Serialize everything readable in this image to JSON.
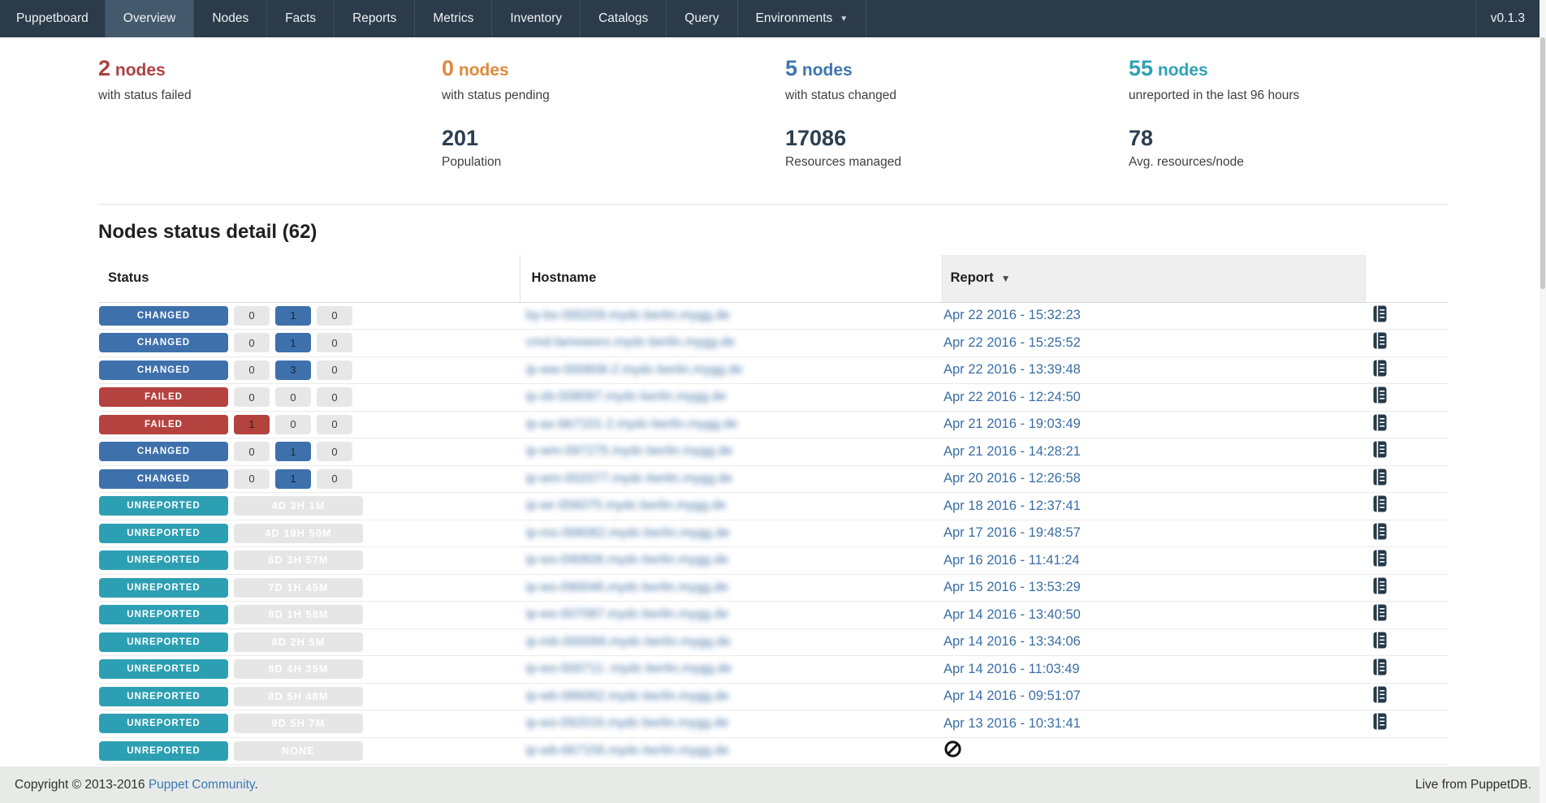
{
  "navbar": {
    "brand": "Puppetboard",
    "items": [
      {
        "label": "Overview",
        "active": true,
        "dropdown": false
      },
      {
        "label": "Nodes",
        "active": false,
        "dropdown": false
      },
      {
        "label": "Facts",
        "active": false,
        "dropdown": false
      },
      {
        "label": "Reports",
        "active": false,
        "dropdown": false
      },
      {
        "label": "Metrics",
        "active": false,
        "dropdown": false
      },
      {
        "label": "Inventory",
        "active": false,
        "dropdown": false
      },
      {
        "label": "Catalogs",
        "active": false,
        "dropdown": false
      },
      {
        "label": "Query",
        "active": false,
        "dropdown": false
      },
      {
        "label": "Environments",
        "active": false,
        "dropdown": true
      }
    ],
    "version": "v0.1.3"
  },
  "stats": {
    "statuses": [
      {
        "count": "2",
        "unit": "nodes",
        "label": "with status failed",
        "color": "#ac4142"
      },
      {
        "count": "0",
        "unit": "nodes",
        "label": "with status pending",
        "color": "#de8a3c"
      },
      {
        "count": "5",
        "unit": "nodes",
        "label": "with status changed",
        "color": "#3e76b0"
      },
      {
        "count": "55",
        "unit": "nodes",
        "label": "unreported in the last 96 hours",
        "color": "#2ea2b5"
      }
    ],
    "metrics": [
      {
        "value": "",
        "label": ""
      },
      {
        "value": "201",
        "label": "Population"
      },
      {
        "value": "17086",
        "label": "Resources managed"
      },
      {
        "value": "78",
        "label": "Avg. resources/node"
      }
    ]
  },
  "section": {
    "title": "Nodes status detail (62)"
  },
  "table": {
    "headers": {
      "status": "Status",
      "hostname": "Hostname",
      "report": "Report"
    },
    "rows": [
      {
        "badge": "CHANGED",
        "badge_type": "changed",
        "chips": [
          {
            "t": "0",
            "type": "default"
          },
          {
            "t": "1",
            "type": "changed"
          },
          {
            "t": "0",
            "type": "default"
          }
        ],
        "hostname_blurred": "by-bx-000209.mydc-berlin.mygg.de",
        "report": "Apr 22 2016 - 15:32:23",
        "icon": true
      },
      {
        "badge": "CHANGED",
        "badge_type": "changed",
        "chips": [
          {
            "t": "0",
            "type": "default"
          },
          {
            "t": "1",
            "type": "changed"
          },
          {
            "t": "0",
            "type": "default"
          }
        ],
        "hostname_blurred": "cmd-lameworx.mydc-berlin.mygg.de",
        "report": "Apr 22 2016 - 15:25:52",
        "icon": true
      },
      {
        "badge": "CHANGED",
        "badge_type": "changed",
        "chips": [
          {
            "t": "0",
            "type": "default"
          },
          {
            "t": "3",
            "type": "changed"
          },
          {
            "t": "0",
            "type": "default"
          }
        ],
        "hostname_blurred": "ip-ww-000808-2.mydc-berlin.mygg.de",
        "report": "Apr 22 2016 - 13:39:48",
        "icon": true
      },
      {
        "badge": "FAILED",
        "badge_type": "failed",
        "chips": [
          {
            "t": "0",
            "type": "default"
          },
          {
            "t": "0",
            "type": "default"
          },
          {
            "t": "0",
            "type": "default"
          }
        ],
        "hostname_blurred": "ip-xb-008087.mydc-berlin.mygg.de",
        "report": "Apr 22 2016 - 12:24:50",
        "icon": true
      },
      {
        "badge": "FAILED",
        "badge_type": "failed",
        "chips": [
          {
            "t": "1",
            "type": "failed"
          },
          {
            "t": "0",
            "type": "default"
          },
          {
            "t": "0",
            "type": "default"
          }
        ],
        "hostname_blurred": "ip-ax-bb7101-2.mydc-berlin.mygg.de",
        "report": "Apr 21 2016 - 19:03:49",
        "icon": true
      },
      {
        "badge": "CHANGED",
        "badge_type": "changed",
        "chips": [
          {
            "t": "0",
            "type": "default"
          },
          {
            "t": "1",
            "type": "changed"
          },
          {
            "t": "0",
            "type": "default"
          }
        ],
        "hostname_blurred": "ip-wm-097275.mydc-berlin.mygg.de",
        "report": "Apr 21 2016 - 14:28:21",
        "icon": true
      },
      {
        "badge": "CHANGED",
        "badge_type": "changed",
        "chips": [
          {
            "t": "0",
            "type": "default"
          },
          {
            "t": "1",
            "type": "changed"
          },
          {
            "t": "0",
            "type": "default"
          }
        ],
        "hostname_blurred": "ip-wm-002077.mydc-berlin.mygg.de",
        "report": "Apr 20 2016 - 12:26:58",
        "icon": true
      },
      {
        "badge": "UNREPORTED",
        "badge_type": "unreported",
        "chips": [
          {
            "t": "4D 3H 1M",
            "type": "wide"
          }
        ],
        "hostname_blurred": "ip-wr-056075.mydc-berlin.mygg.de",
        "report": "Apr 18 2016 - 12:37:41",
        "icon": true
      },
      {
        "badge": "UNREPORTED",
        "badge_type": "unreported",
        "chips": [
          {
            "t": "4D 19H 50M",
            "type": "wide"
          }
        ],
        "hostname_blurred": "ip-ms-006062.mydc-berlin.mygg.de",
        "report": "Apr 17 2016 - 19:48:57",
        "icon": true
      },
      {
        "badge": "UNREPORTED",
        "badge_type": "unreported",
        "chips": [
          {
            "t": "6D 3H 57M",
            "type": "wide"
          }
        ],
        "hostname_blurred": "ip-ws-090606.mydc-berlin.mygg.de",
        "report": "Apr 16 2016 - 11:41:24",
        "icon": true
      },
      {
        "badge": "UNREPORTED",
        "badge_type": "unreported",
        "chips": [
          {
            "t": "7D 1H 45M",
            "type": "wide"
          }
        ],
        "hostname_blurred": "ip-ws-090046.mydc-berlin.mygg.de",
        "report": "Apr 15 2016 - 13:53:29",
        "icon": true
      },
      {
        "badge": "UNREPORTED",
        "badge_type": "unreported",
        "chips": [
          {
            "t": "8D 1H 58M",
            "type": "wide"
          }
        ],
        "hostname_blurred": "ip-ws-007087.mydc-berlin.mygg.de",
        "report": "Apr 14 2016 - 13:40:50",
        "icon": true
      },
      {
        "badge": "UNREPORTED",
        "badge_type": "unreported",
        "chips": [
          {
            "t": "8D 2H 5M",
            "type": "wide"
          }
        ],
        "hostname_blurred": "ip-mb-000066.mydc-berlin.mygg.de",
        "report": "Apr 14 2016 - 13:34:06",
        "icon": true
      },
      {
        "badge": "UNREPORTED",
        "badge_type": "unreported",
        "chips": [
          {
            "t": "8D 4H 35M",
            "type": "wide"
          }
        ],
        "hostname_blurred": "ip-ws-000711-.mydc-berlin.mygg.de",
        "report": "Apr 14 2016 - 11:03:49",
        "icon": true
      },
      {
        "badge": "UNREPORTED",
        "badge_type": "unreported",
        "chips": [
          {
            "t": "8D 5H 48M",
            "type": "wide"
          }
        ],
        "hostname_blurred": "ip-wb-066062.mydc-berlin.mygg.de",
        "report": "Apr 14 2016 - 09:51:07",
        "icon": true
      },
      {
        "badge": "UNREPORTED",
        "badge_type": "unreported",
        "chips": [
          {
            "t": "9D 5H 7M",
            "type": "wide"
          }
        ],
        "hostname_blurred": "ip-ws-092016.mydc-berlin.mygg.de",
        "report": "Apr 13 2016 - 10:31:41",
        "icon": true
      },
      {
        "badge": "UNREPORTED",
        "badge_type": "unreported",
        "chips": [
          {
            "t": "NONE",
            "type": "wide"
          }
        ],
        "hostname_blurred": "ip-wb-667156.mydc-berlin.mygg.de",
        "report": null,
        "no_report": true,
        "icon": false
      }
    ]
  },
  "footer": {
    "copyright_prefix": "Copyright © 2013-2016",
    "community_link": "Puppet Community",
    "suffix": ".",
    "live": "Live from PuppetDB."
  },
  "colors": {
    "navbar_bg": "#2b3b49",
    "navbar_active_bg": "#44596c",
    "badge_changed": "#3e71ac",
    "badge_failed": "#b4423e",
    "badge_unreported": "#2d9fb2",
    "link_blue": "#3a6ea5",
    "footer_bg": "#e8eae8",
    "report_header_bg": "#efefef"
  }
}
